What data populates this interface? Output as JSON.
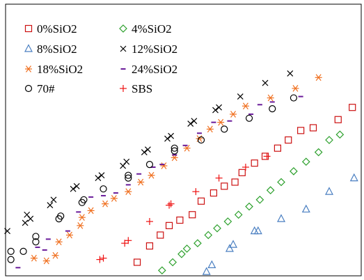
{
  "chart_data": {
    "type": "scatter",
    "title": "",
    "xlabel": "",
    "ylabel": "",
    "xlim": [
      0,
      100
    ],
    "ylim": [
      0,
      100
    ],
    "grid": false,
    "axes_ticks": false,
    "legend_position": "top-left",
    "series": [
      {
        "name": "0%SiO2",
        "marker": "square",
        "color": "#cc1111",
        "points": [
          [
            37.0,
            5.0
          ],
          [
            40.5,
            11.0
          ],
          [
            43.5,
            15.0
          ],
          [
            46.0,
            18.5
          ],
          [
            49.0,
            20.5
          ],
          [
            52.5,
            22.5
          ],
          [
            55.0,
            27.5
          ],
          [
            58.5,
            30.5
          ],
          [
            61.5,
            33.0
          ],
          [
            64.5,
            34.5
          ],
          [
            66.5,
            38.0
          ],
          [
            70.0,
            41.5
          ],
          [
            73.0,
            44.0
          ],
          [
            76.5,
            47.0
          ],
          [
            79.5,
            50.0
          ],
          [
            83.0,
            53.5
          ],
          [
            86.5,
            54.5
          ],
          [
            93.5,
            57.5
          ],
          [
            97.5,
            62.0
          ]
        ]
      },
      {
        "name": "4%SiO2",
        "marker": "diamond",
        "color": "#2ca02c",
        "points": [
          [
            44.0,
            2.0
          ],
          [
            47.0,
            5.0
          ],
          [
            49.5,
            8.0
          ],
          [
            51.0,
            10.0
          ],
          [
            54.0,
            12.0
          ],
          [
            57.0,
            15.0
          ],
          [
            59.5,
            17.5
          ],
          [
            62.5,
            20.0
          ],
          [
            65.5,
            22.5
          ],
          [
            68.5,
            25.5
          ],
          [
            71.5,
            28.0
          ],
          [
            74.5,
            31.5
          ],
          [
            77.5,
            34.5
          ],
          [
            81.0,
            38.5
          ],
          [
            84.5,
            42.0
          ],
          [
            88.0,
            45.5
          ],
          [
            91.0,
            50.0
          ],
          [
            94.0,
            52.0
          ]
        ]
      },
      {
        "name": "8%SiO2",
        "marker": "triangle",
        "color": "#4a7fc1",
        "points": [
          [
            56.5,
            1.5
          ],
          [
            58.0,
            4.0
          ],
          [
            63.0,
            10.0
          ],
          [
            64.0,
            11.5
          ],
          [
            70.0,
            16.5
          ],
          [
            71.0,
            16.5
          ],
          [
            77.5,
            21.0
          ],
          [
            84.5,
            24.5
          ],
          [
            91.0,
            31.0
          ],
          [
            98.0,
            36.0
          ]
        ]
      },
      {
        "name": "12%SiO2",
        "marker": "x",
        "color": "#000000",
        "points": [
          [
            0.5,
            16.5
          ],
          [
            5.5,
            19.5
          ],
          [
            6.0,
            22.5
          ],
          [
            7.0,
            21.0
          ],
          [
            12.5,
            26.0
          ],
          [
            13.5,
            28.0
          ],
          [
            19.0,
            32.0
          ],
          [
            20.0,
            33.0
          ],
          [
            26.0,
            36.0
          ],
          [
            27.0,
            37.0
          ],
          [
            33.0,
            40.5
          ],
          [
            34.0,
            42.0
          ],
          [
            39.0,
            45.5
          ],
          [
            40.0,
            46.5
          ],
          [
            45.5,
            50.5
          ],
          [
            46.5,
            51.5
          ],
          [
            52.0,
            56.0
          ],
          [
            53.0,
            57.0
          ],
          [
            59.0,
            61.0
          ],
          [
            60.0,
            62.0
          ],
          [
            66.0,
            66.0
          ],
          [
            73.0,
            71.0
          ],
          [
            80.0,
            74.5
          ]
        ]
      },
      {
        "name": "18%SiO2",
        "marker": "asterisk",
        "color": "#f07020",
        "points": [
          [
            8.0,
            6.5
          ],
          [
            11.5,
            5.5
          ],
          [
            14.0,
            7.5
          ],
          [
            15.0,
            12.5
          ],
          [
            18.0,
            15.0
          ],
          [
            21.0,
            18.5
          ],
          [
            21.5,
            21.5
          ],
          [
            24.0,
            24.0
          ],
          [
            28.0,
            26.5
          ],
          [
            30.5,
            28.5
          ],
          [
            34.5,
            31.0
          ],
          [
            38.0,
            34.5
          ],
          [
            41.0,
            37.0
          ],
          [
            44.5,
            40.5
          ],
          [
            47.5,
            43.5
          ],
          [
            51.0,
            47.0
          ],
          [
            54.5,
            50.5
          ],
          [
            57.5,
            54.0
          ],
          [
            60.5,
            56.5
          ],
          [
            64.0,
            59.5
          ],
          [
            67.5,
            62.5
          ],
          [
            74.5,
            65.5
          ],
          [
            81.5,
            69.0
          ],
          [
            88.0,
            73.0
          ]
        ]
      },
      {
        "name": "24%SiO2",
        "marker": "dash",
        "color": "#6a1b9a",
        "points": [
          [
            3.5,
            3.0
          ],
          [
            9.0,
            10.5
          ],
          [
            11.0,
            9.5
          ],
          [
            12.0,
            13.5
          ],
          [
            17.5,
            16.5
          ],
          [
            20.5,
            23.5
          ],
          [
            24.0,
            29.0
          ],
          [
            27.5,
            29.5
          ],
          [
            31.0,
            30.5
          ],
          [
            34.5,
            33.5
          ],
          [
            37.5,
            37.5
          ],
          [
            41.5,
            40.0
          ],
          [
            44.0,
            41.0
          ],
          [
            47.5,
            44.5
          ],
          [
            50.5,
            48.0
          ],
          [
            54.5,
            52.5
          ],
          [
            58.5,
            56.5
          ],
          [
            63.0,
            57.0
          ],
          [
            69.0,
            59.5
          ],
          [
            71.5,
            63.0
          ],
          [
            75.0,
            64.0
          ],
          [
            83.0,
            66.0
          ]
        ]
      },
      {
        "name": "70#",
        "marker": "circle",
        "color": "#000000",
        "points": [
          [
            1.5,
            6.0
          ],
          [
            1.5,
            9.0
          ],
          [
            5.0,
            9.0
          ],
          [
            8.5,
            12.5
          ],
          [
            8.5,
            14.5
          ],
          [
            15.0,
            21.0
          ],
          [
            15.5,
            22.0
          ],
          [
            21.5,
            27.0
          ],
          [
            22.0,
            28.0
          ],
          [
            27.5,
            32.0
          ],
          [
            34.5,
            36.0
          ],
          [
            34.5,
            37.0
          ],
          [
            40.5,
            41.0
          ],
          [
            47.5,
            46.0
          ],
          [
            47.5,
            47.0
          ],
          [
            55.0,
            50.0
          ],
          [
            61.5,
            54.0
          ],
          [
            68.5,
            58.0
          ],
          [
            75.0,
            61.5
          ],
          [
            81.0,
            65.5
          ]
        ]
      },
      {
        "name": "SBS",
        "marker": "plus",
        "color": "#ee1111",
        "points": [
          [
            26.5,
            6.0
          ],
          [
            27.5,
            6.5
          ],
          [
            33.5,
            12.0
          ],
          [
            34.5,
            13.0
          ],
          [
            40.5,
            20.0
          ],
          [
            46.0,
            26.0
          ],
          [
            46.5,
            26.5
          ],
          [
            53.5,
            31.0
          ],
          [
            60.0,
            36.0
          ],
          [
            67.5,
            40.0
          ],
          [
            73.5,
            44.0
          ]
        ]
      }
    ]
  }
}
